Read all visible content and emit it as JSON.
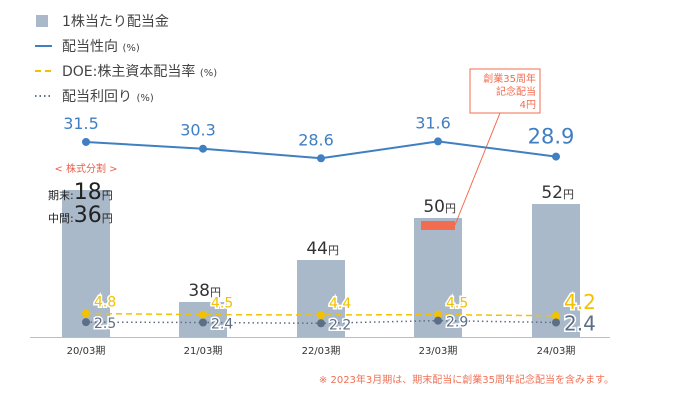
{
  "chart_data": {
    "type": "bar",
    "categories": [
      "20/03期",
      "21/03期",
      "22/03期",
      "23/03期",
      "24/03期"
    ],
    "series": [
      {
        "name": "1株当たり配当金",
        "type": "bar",
        "color": "#a9b9c9",
        "values": [
          54,
          38,
          44,
          50,
          52
        ],
        "labels": [
          "",
          "38円",
          "44円",
          "50円",
          "52円"
        ]
      },
      {
        "name": "配当性向",
        "unit": "(%)",
        "type": "line",
        "style": "solid",
        "color": "#3f7fc2",
        "values": [
          31.5,
          30.3,
          28.6,
          31.6,
          28.9
        ],
        "labels": [
          "31.5",
          "30.3",
          "28.6",
          "31.6",
          "28.9"
        ]
      },
      {
        "name": "DOE:株主資本配当率",
        "unit": "(%)",
        "type": "line",
        "style": "dashed",
        "color": "#f2c200",
        "values": [
          4.8,
          4.5,
          4.4,
          4.5,
          4.2
        ],
        "labels": [
          "4.8",
          "4.5",
          "4.4",
          "4.5",
          "4.2"
        ]
      },
      {
        "name": "配当利回り",
        "unit": "(%)",
        "type": "line",
        "style": "dotted",
        "color": "#5d6f86",
        "values": [
          2.5,
          2.4,
          2.2,
          2.9,
          2.4
        ],
        "labels": [
          "2.5",
          "2.4",
          "2.2",
          "2.9",
          "2.4"
        ]
      }
    ],
    "legend_position": "top-left",
    "commemorative": {
      "value": 4,
      "color": "#f26c4f",
      "label_lines": [
        "創業35周年",
        "記念配当",
        "4円"
      ]
    },
    "split_note": {
      "title": "< 株式分割 >",
      "rows": [
        {
          "label": "期末:",
          "value": "18",
          "unit": "円"
        },
        {
          "label": "中間:",
          "value": "36",
          "unit": "円"
        }
      ]
    },
    "footnote": "※ 2023年3月期は、期末配当に創業35周年記念配当を含みます。"
  }
}
